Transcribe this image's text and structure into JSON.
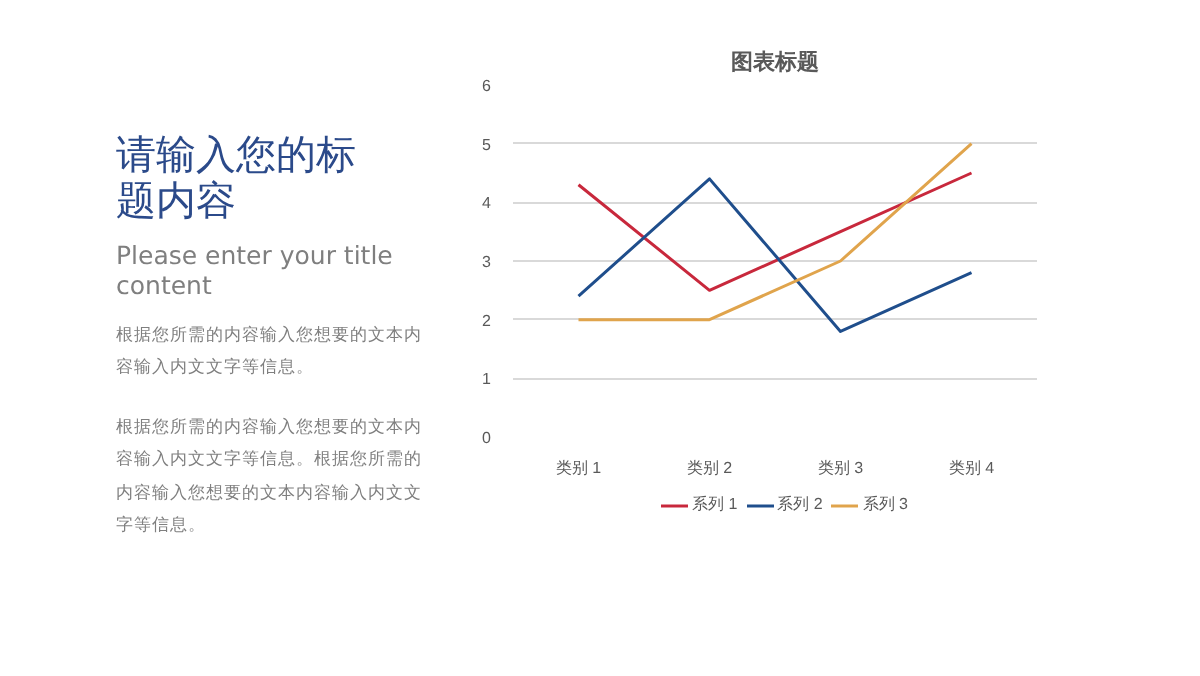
{
  "chart_data": {
    "type": "line",
    "title": "图表标题",
    "categories": [
      "类别 1",
      "类别 2",
      "类别 3",
      "类别 4"
    ],
    "series": [
      {
        "name": "系列 1",
        "color": "#c8283c",
        "values": [
          4.3,
          2.5,
          3.5,
          4.5
        ]
      },
      {
        "name": "系列 2",
        "color": "#1f4e8c",
        "values": [
          2.4,
          4.4,
          1.8,
          2.8
        ]
      },
      {
        "name": "系列 3",
        "color": "#e0a44c",
        "values": [
          2,
          2,
          3,
          5
        ]
      }
    ],
    "ylim": [
      0,
      6
    ],
    "yticks": [
      0,
      1,
      2,
      3,
      4,
      5,
      6
    ],
    "grid": "y",
    "legend": "bottom",
    "marker": "none",
    "line_style": "solid",
    "annotations": [
      "请输入您的标题内容",
      "Please enter your title content",
      "根据您所需的内容输入您想要的文本内容输入内文文字等信息。",
      "根据您所需的内容输入您想要的文本内容输入内文文字等信息。根据您所需的内容输入您想要的文本内容输入内文文字等信息。"
    ]
  }
}
